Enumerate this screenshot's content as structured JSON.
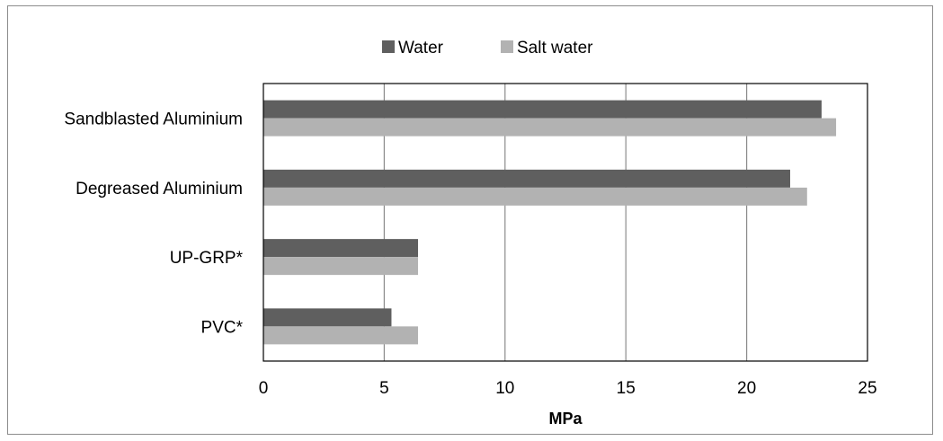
{
  "chart_data": {
    "type": "bar",
    "orientation": "horizontal",
    "categories": [
      "Sandblasted Aluminium",
      "Degreased Aluminium",
      "UP-GRP*",
      "PVC*"
    ],
    "series": [
      {
        "name": "Water",
        "color": "#5f5f5f",
        "values": [
          23.1,
          21.8,
          6.4,
          5.3
        ]
      },
      {
        "name": "Salt water",
        "color": "#b2b2b2",
        "values": [
          23.7,
          22.5,
          6.4,
          6.4
        ]
      }
    ],
    "xlabel": "MPa",
    "ylabel": "",
    "xlim": [
      0,
      25
    ],
    "xticks": [
      "0",
      "5",
      "10",
      "15",
      "20",
      "25"
    ],
    "grid": true,
    "legend_position": "top"
  }
}
